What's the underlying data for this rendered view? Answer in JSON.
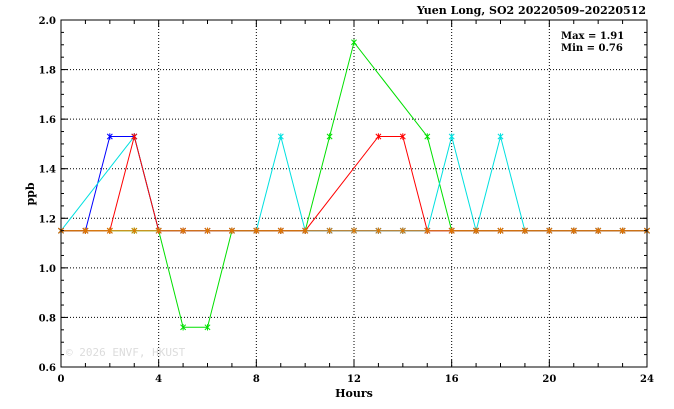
{
  "chart_data": {
    "type": "line",
    "title": "Yuen Long, SO2 20220509–20220512",
    "xlabel": "Hours",
    "ylabel": "ppb",
    "xlim": [
      0,
      24
    ],
    "ylim": [
      0.6,
      2.0
    ],
    "x_ticks": [
      0,
      4,
      8,
      12,
      16,
      20,
      24
    ],
    "y_ticks": [
      0.6,
      0.8,
      1.0,
      1.2,
      1.4,
      1.6,
      1.8,
      2.0
    ],
    "grid": true,
    "annotations": [
      "Max = 1.91",
      "Min = 0.76"
    ],
    "watermark": "© 2026 ENVF, HKUST",
    "x": [
      0,
      1,
      2,
      3,
      4,
      5,
      6,
      7,
      8,
      9,
      10,
      11,
      12,
      13,
      14,
      15,
      16,
      17,
      18,
      19,
      20,
      21,
      22,
      23,
      24
    ],
    "series": [
      {
        "color": "#0000ff",
        "values": [
          1.15,
          1.15,
          1.53,
          1.53,
          1.15,
          1.15,
          1.15,
          1.15,
          1.15,
          1.15,
          1.15,
          1.15,
          1.15,
          1.15,
          1.15,
          1.15,
          1.15,
          1.15,
          1.15,
          1.15,
          1.15,
          1.15,
          1.15,
          1.15,
          1.15
        ]
      },
      {
        "color": "#00e000",
        "values": [
          1.15,
          1.15,
          1.15,
          1.15,
          1.15,
          0.76,
          0.76,
          1.15,
          1.15,
          1.15,
          1.15,
          1.53,
          1.91,
          null,
          null,
          1.53,
          1.15,
          1.15,
          1.15,
          1.15,
          1.15,
          1.15,
          1.15,
          1.15,
          1.15
        ]
      },
      {
        "color": "#00e0e0",
        "values": [
          1.15,
          null,
          null,
          1.53,
          1.15,
          1.15,
          1.15,
          1.15,
          1.15,
          1.53,
          1.15,
          1.15,
          1.15,
          1.15,
          1.15,
          1.15,
          1.53,
          1.15,
          1.53,
          1.15,
          1.15,
          1.15,
          1.15,
          1.15,
          1.15
        ]
      },
      {
        "color": "#ff0000",
        "values": [
          1.15,
          1.15,
          1.15,
          1.53,
          1.15,
          1.15,
          1.15,
          1.15,
          1.15,
          1.15,
          1.15,
          null,
          null,
          1.53,
          1.53,
          1.15,
          1.15,
          1.15,
          1.15,
          1.15,
          1.15,
          1.15,
          1.15,
          1.15,
          1.15
        ]
      },
      {
        "color": "#e07800",
        "values": [
          1.15,
          1.15,
          1.15,
          1.15,
          1.15,
          1.15,
          1.15,
          1.15,
          1.15,
          1.15,
          1.15,
          1.15,
          1.15,
          1.15,
          1.15,
          1.15,
          1.15,
          1.15,
          1.15,
          1.15,
          1.15,
          1.15,
          1.15,
          1.15,
          1.15
        ]
      }
    ]
  }
}
